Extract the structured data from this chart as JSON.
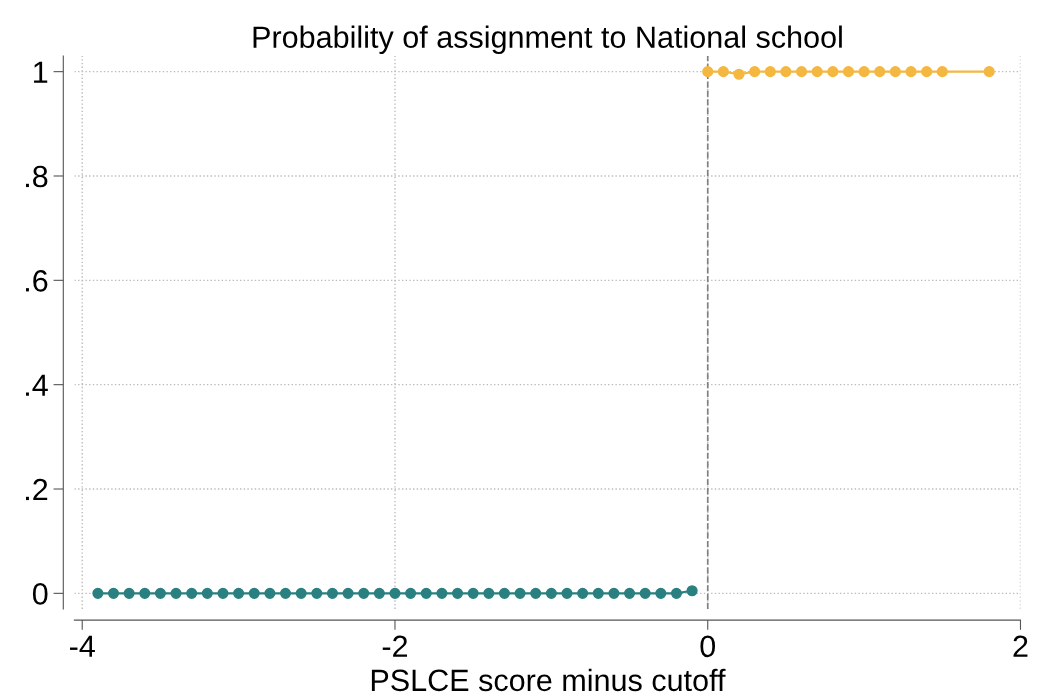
{
  "chart_data": {
    "type": "line",
    "title": "Probability of assignment to National school",
    "xlabel": "PSLCE score minus cutoff",
    "series": [
      {
        "color": "#2a8080",
        "x": [
          -3.9,
          -3.8,
          -3.7,
          -3.6,
          -3.5,
          -3.4,
          -3.3,
          -3.2,
          -3.1,
          -3.0,
          -2.9,
          -2.8,
          -2.7,
          -2.6,
          -2.5,
          -2.4,
          -2.3,
          -2.2,
          -2.1,
          -2.0,
          -1.9,
          -1.8,
          -1.7,
          -1.6,
          -1.5,
          -1.4,
          -1.3,
          -1.2,
          -1.1,
          -1.0,
          -0.9,
          -0.8,
          -0.7,
          -0.6,
          -0.5,
          -0.4,
          -0.3,
          -0.2,
          -0.1
        ],
        "values": [
          0,
          0,
          0,
          0,
          0,
          0,
          0,
          0,
          0,
          0,
          0,
          0,
          0,
          0,
          0,
          0,
          0,
          0,
          0,
          0,
          0,
          0,
          0,
          0,
          0,
          0,
          0,
          0,
          0,
          0,
          0,
          0,
          0,
          0,
          0,
          0,
          0,
          0,
          0.005
        ]
      },
      {
        "color": "#f4b740",
        "x": [
          0.0,
          0.1,
          0.2,
          0.3,
          0.4,
          0.5,
          0.6,
          0.7,
          0.8,
          0.9,
          1.0,
          1.1,
          1.2,
          1.3,
          1.4,
          1.5,
          1.8
        ],
        "values": [
          1,
          1,
          0.995,
          1,
          1,
          1,
          1,
          1,
          1,
          1,
          1,
          1,
          1,
          1,
          1,
          1,
          1
        ]
      }
    ],
    "xlim": [
      -4.05,
      2.0
    ],
    "ylim": [
      -0.03,
      1.03
    ],
    "xticks": [
      {
        "value": -4,
        "label": "-4"
      },
      {
        "value": -2,
        "label": "-2"
      },
      0,
      2
    ],
    "yticks": [
      0,
      {
        "value": 0.2,
        "label": ".2"
      },
      {
        "value": 0.4,
        "label": ".4"
      },
      {
        "value": 0.6,
        "label": ".6"
      },
      {
        "value": 0.8,
        "label": ".8"
      },
      1
    ],
    "ref_lines": [
      {
        "axis": "x",
        "value": 0,
        "color": "#808080",
        "line_style": "dashed"
      }
    ],
    "grid": true,
    "marker": "circle",
    "line_style": "solid"
  }
}
